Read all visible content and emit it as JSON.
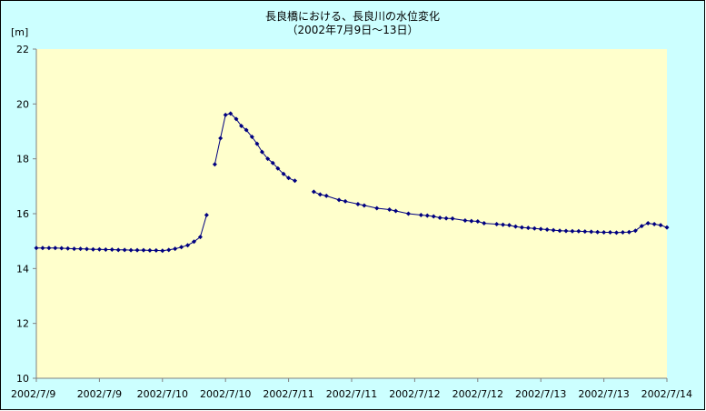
{
  "chart_data": {
    "type": "line",
    "title": "長良橋における、長良川の水位変化",
    "subtitle": "（2002年7月9日～13日）",
    "ylabel": "[m]",
    "xlabel": "",
    "ylim": [
      10,
      22
    ],
    "yticks": [
      10,
      12,
      14,
      16,
      18,
      20,
      22
    ],
    "xlim": [
      0,
      10
    ],
    "xtick_labels": [
      "2002/7/9",
      "2002/7/9",
      "2002/7/10",
      "2002/7/10",
      "2002/7/11",
      "2002/7/11",
      "2002/7/12",
      "2002/7/12",
      "2002/7/13",
      "2002/7/13",
      "2002/7/14"
    ],
    "grid": false,
    "legend": "none",
    "colors": {
      "page_bg": "#ffffff",
      "chart_area_bg": "#ccffff",
      "plot_bg": "#ffffcc",
      "series": "#000080",
      "axis": "#808080",
      "border": "#000000"
    },
    "series": [
      {
        "segments": [
          {
            "x": [
              0.0,
              0.1,
              0.2,
              0.3,
              0.4,
              0.5,
              0.6,
              0.7,
              0.8,
              0.9,
              1.0,
              1.1,
              1.2,
              1.3,
              1.4,
              1.5,
              1.6,
              1.7,
              1.8,
              1.9,
              2.0,
              2.1,
              2.2,
              2.3,
              2.4,
              2.5,
              2.6,
              2.7
            ],
            "y": [
              14.75,
              14.75,
              14.75,
              14.75,
              14.74,
              14.73,
              14.72,
              14.72,
              14.71,
              14.7,
              14.7,
              14.69,
              14.69,
              14.68,
              14.68,
              14.67,
              14.67,
              14.67,
              14.66,
              14.66,
              14.65,
              14.68,
              14.72,
              14.78,
              14.85,
              14.98,
              15.15,
              15.95
            ]
          },
          {
            "x": [
              2.83,
              2.92,
              3.0,
              3.08,
              3.17,
              3.25,
              3.33,
              3.42,
              3.5,
              3.58,
              3.67,
              3.75,
              3.83,
              3.92,
              4.0,
              4.1
            ],
            "y": [
              17.8,
              18.75,
              19.6,
              19.65,
              19.45,
              19.2,
              19.05,
              18.8,
              18.55,
              18.25,
              18.0,
              17.85,
              17.65,
              17.45,
              17.3,
              17.2
            ]
          },
          {
            "x": [
              4.4,
              4.5,
              4.6,
              4.8,
              4.9,
              5.1,
              5.2,
              5.4,
              5.6,
              5.7,
              5.9,
              6.1,
              6.2,
              6.3,
              6.4,
              6.5,
              6.6,
              6.8,
              6.9,
              7.0,
              7.1,
              7.3,
              7.4,
              7.5,
              7.6,
              7.7,
              7.8,
              7.9,
              8.0,
              8.1,
              8.2,
              8.3,
              8.4,
              8.5,
              8.6,
              8.7,
              8.8,
              8.9,
              9.0,
              9.1,
              9.2,
              9.3,
              9.4,
              9.5,
              9.6,
              9.7,
              9.8,
              9.9,
              10.0
            ],
            "y": [
              16.8,
              16.7,
              16.65,
              16.5,
              16.45,
              16.35,
              16.3,
              16.2,
              16.15,
              16.1,
              16.0,
              15.95,
              15.93,
              15.9,
              15.85,
              15.83,
              15.82,
              15.75,
              15.73,
              15.72,
              15.65,
              15.62,
              15.6,
              15.58,
              15.53,
              15.5,
              15.48,
              15.46,
              15.44,
              15.42,
              15.4,
              15.38,
              15.37,
              15.36,
              15.36,
              15.35,
              15.34,
              15.33,
              15.32,
              15.32,
              15.31,
              15.32,
              15.33,
              15.38,
              15.55,
              15.65,
              15.62,
              15.58,
              15.5
            ]
          }
        ]
      }
    ]
  }
}
